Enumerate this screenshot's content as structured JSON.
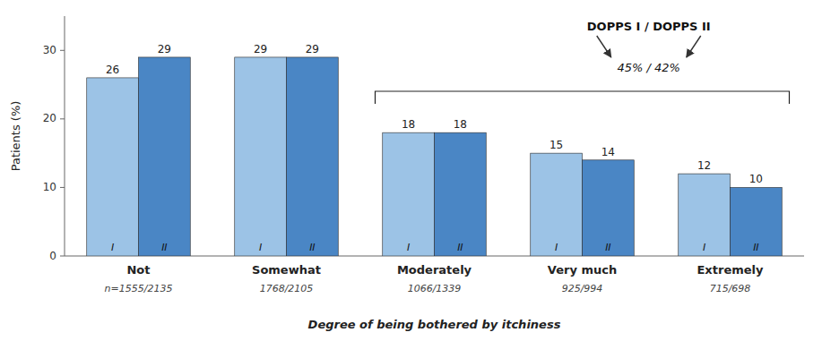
{
  "chart_data": {
    "type": "bar",
    "categories": [
      "Not",
      "Somewhat",
      "Moderately",
      "Very much",
      "Extremely"
    ],
    "n_labels": [
      "n=1555/2135",
      "1768/2105",
      "1066/1339",
      "925/994",
      "715/698"
    ],
    "series": [
      {
        "name": "I",
        "color": "#9cc3e6",
        "values": [
          26,
          29,
          18,
          15,
          12
        ]
      },
      {
        "name": "II",
        "color": "#4a86c5",
        "values": [
          29,
          29,
          18,
          14,
          10
        ]
      }
    ],
    "ylabel": "Patients (%)",
    "xlabel": "Degree of being bothered by itchiness",
    "annotations": [
      "DOPPS I / DOPPS II",
      "45% / 42%"
    ],
    "ylim": [
      0,
      35
    ],
    "yticks": [
      0,
      10,
      20,
      30
    ],
    "data_labels": true,
    "grid": false
  }
}
